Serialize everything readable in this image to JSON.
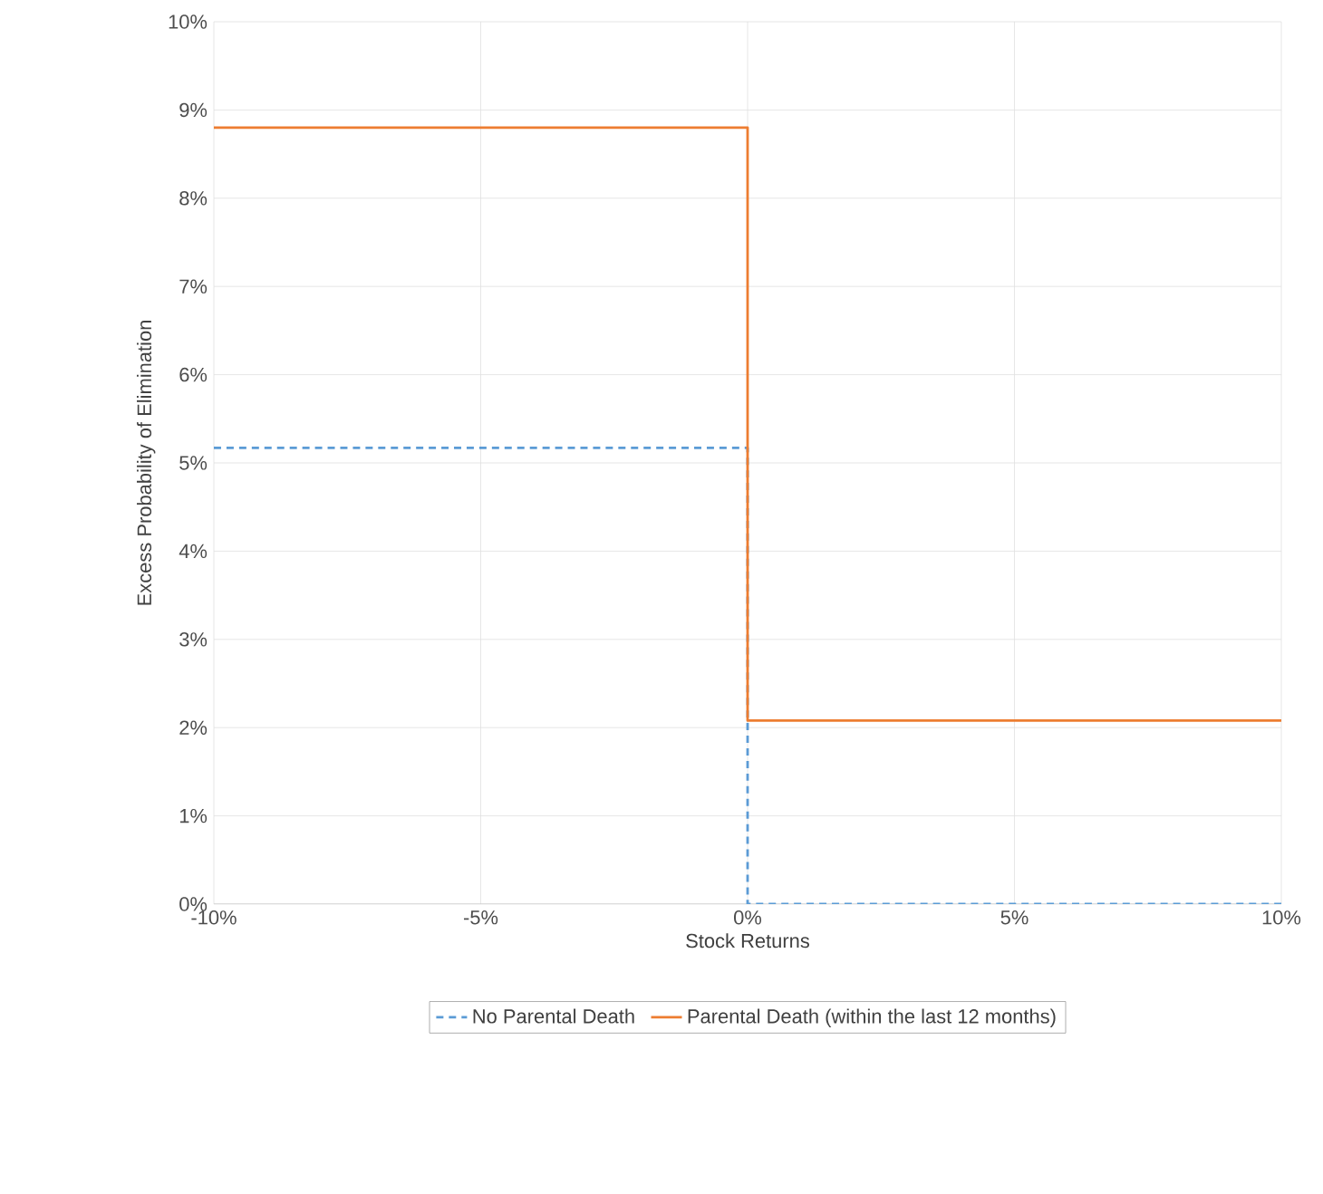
{
  "chart_data": {
    "type": "step",
    "xlabel": "Stock Returns",
    "ylabel": "Excess Probability of  Elimination",
    "x": [
      -10,
      0,
      10
    ],
    "series": [
      {
        "name": "No Parental Death",
        "color": "#5b9bd5",
        "line_style": "dashed",
        "values": [
          5.17,
          0,
          0
        ]
      },
      {
        "name": "Parental Death (within the last 12 months)",
        "color": "#ed7d31",
        "line_style": "solid",
        "values": [
          8.8,
          2.08,
          2.08
        ]
      }
    ],
    "xlim": [
      -10,
      10
    ],
    "ylim": [
      0,
      10
    ],
    "xticks": [
      {
        "value": -10,
        "label": "-10%"
      },
      {
        "value": -5,
        "label": "-5%"
      },
      {
        "value": 0,
        "label": "0%"
      },
      {
        "value": 5,
        "label": "5%"
      },
      {
        "value": 10,
        "label": "10%"
      }
    ],
    "yticks": [
      {
        "value": 0,
        "label": "0%"
      },
      {
        "value": 1,
        "label": "1%"
      },
      {
        "value": 2,
        "label": "2%"
      },
      {
        "value": 3,
        "label": "3%"
      },
      {
        "value": 4,
        "label": "4%"
      },
      {
        "value": 5,
        "label": "5%"
      },
      {
        "value": 6,
        "label": "6%"
      },
      {
        "value": 7,
        "label": "7%"
      },
      {
        "value": 8,
        "label": "8%"
      },
      {
        "value": 9,
        "label": "9%"
      },
      {
        "value": 10,
        "label": "10%"
      }
    ],
    "grid": true,
    "legend": "bottom",
    "marker": "none"
  }
}
